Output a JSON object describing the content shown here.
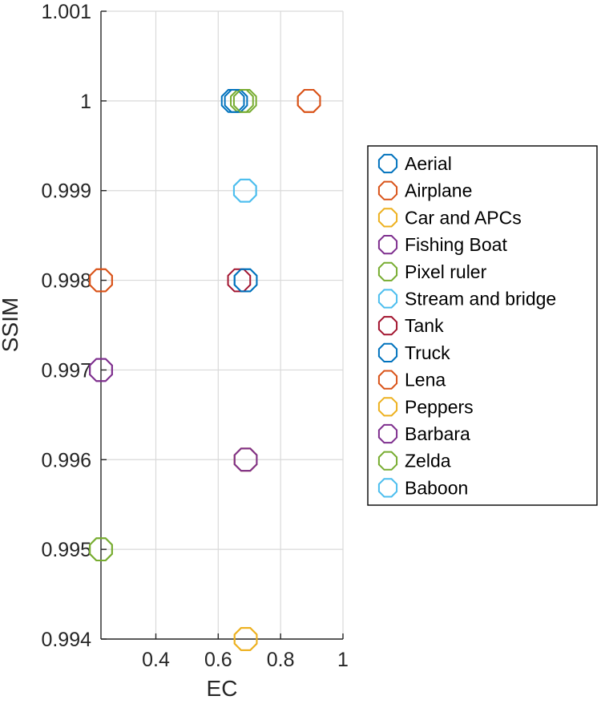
{
  "chart_data": {
    "type": "scatter",
    "title": "",
    "xlabel": "EC",
    "ylabel": "SSIM",
    "xlim": [
      0.224,
      1.0
    ],
    "ylim": [
      0.994,
      1.001
    ],
    "xticks": [
      0.4,
      0.6,
      0.8,
      1.0
    ],
    "xtick_labels": [
      "0.4",
      "0.6",
      "0.8",
      "1"
    ],
    "yticks": [
      0.994,
      0.995,
      0.996,
      0.997,
      0.998,
      0.999,
      1.0,
      1.001
    ],
    "ytick_labels": [
      "0.994",
      "0.995",
      "0.996",
      "0.997",
      "0.998",
      "0.999",
      "1",
      "1.001"
    ],
    "grid": true,
    "legend_position": "right",
    "marker": "octagon",
    "series": [
      {
        "name": "Aerial",
        "color": "#0072BD",
        "x": [
          0.647,
          0.688
        ],
        "y": [
          1.0,
          0.998
        ]
      },
      {
        "name": "Airplane",
        "color": "#D95319",
        "x": [
          0.891,
          0.224
        ],
        "y": [
          1.0,
          0.998
        ]
      },
      {
        "name": "Car and APCs",
        "color": "#EDB120",
        "x": [
          0.688,
          0.688
        ],
        "y": [
          0.996,
          0.994
        ]
      },
      {
        "name": "Fishing Boat",
        "color": "#7E2F8E",
        "x": [
          0.224,
          0.688
        ],
        "y": [
          0.997,
          0.996
        ]
      },
      {
        "name": "Pixel ruler",
        "color": "#77AC30",
        "x": [
          0.676,
          0.224
        ],
        "y": [
          1.0,
          0.995
        ]
      },
      {
        "name": "Stream and bridge",
        "color": "#4DBEEE",
        "x": [
          0.686
        ],
        "y": [
          0.999
        ]
      },
      {
        "name": "Tank",
        "color": "#A2142F",
        "x": [
          0.667
        ],
        "y": [
          0.998
        ]
      },
      {
        "name": "Truck",
        "color": "#0072BD",
        "x": [
          0.657,
          0.688
        ],
        "y": [
          1.0,
          0.998
        ]
      },
      {
        "name": "Lena",
        "color": "#D95319",
        "x": [
          0.891,
          0.224
        ],
        "y": [
          1.0,
          0.998
        ]
      },
      {
        "name": "Peppers",
        "color": "#EDB120",
        "x": [
          0.688,
          0.688
        ],
        "y": [
          0.996,
          0.994
        ]
      },
      {
        "name": "Barbara",
        "color": "#7E2F8E",
        "x": [
          0.224,
          0.688
        ],
        "y": [
          0.997,
          0.996
        ]
      },
      {
        "name": "Zelda",
        "color": "#77AC30",
        "x": [
          0.686,
          0.224
        ],
        "y": [
          1.0,
          0.995
        ]
      },
      {
        "name": "Baboon",
        "color": "#4DBEEE",
        "x": [
          0.686
        ],
        "y": [
          0.999
        ]
      }
    ]
  },
  "colors": {
    "axis": "#262626",
    "grid": "#d9d9d9",
    "legend_border": "#000000"
  }
}
